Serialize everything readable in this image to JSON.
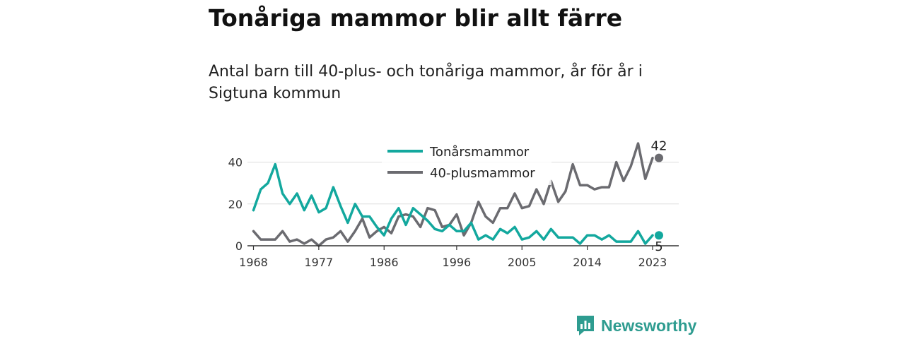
{
  "header": {
    "title": "Tonåriga mammor blir allt färre",
    "subtitle": "Antal barn till 40-plus- och tonåriga mammor, år för år i Sigtuna kommun"
  },
  "brand": {
    "name": "Newsworthy",
    "icon": "newsworthy-logo-icon",
    "color": "#2e9c90"
  },
  "chart_data": {
    "type": "line",
    "x_start": 1968,
    "x": [
      1968,
      1969,
      1970,
      1971,
      1972,
      1973,
      1974,
      1975,
      1976,
      1977,
      1978,
      1979,
      1980,
      1981,
      1982,
      1983,
      1984,
      1985,
      1986,
      1987,
      1988,
      1989,
      1990,
      1991,
      1992,
      1993,
      1994,
      1995,
      1996,
      1997,
      1998,
      1999,
      2000,
      2001,
      2002,
      2003,
      2004,
      2005,
      2006,
      2007,
      2008,
      2009,
      2010,
      2011,
      2012,
      2013,
      2014,
      2015,
      2016,
      2017,
      2018,
      2019,
      2020,
      2021,
      2022,
      2023
    ],
    "series": [
      {
        "name": "Tonårsmammor",
        "color": "#13a89e",
        "values": [
          17,
          27,
          30,
          39,
          25,
          20,
          25,
          17,
          24,
          16,
          18,
          28,
          19,
          11,
          20,
          14,
          14,
          9,
          5,
          13,
          18,
          10,
          18,
          15,
          12,
          8,
          7,
          10,
          7,
          7,
          11,
          3,
          5,
          3,
          8,
          6,
          9,
          3,
          4,
          7,
          3,
          8,
          4,
          4,
          4,
          1,
          5,
          5,
          3,
          5,
          2,
          2,
          2,
          7,
          1,
          5
        ],
        "end_label": "5"
      },
      {
        "name": "40-plusmammor",
        "color": "#6b6b70",
        "values": [
          7,
          3,
          3,
          3,
          7,
          2,
          3,
          1,
          3,
          0,
          3,
          4,
          7,
          2,
          7,
          13,
          4,
          7,
          9,
          6,
          14,
          15,
          14,
          9,
          18,
          17,
          9,
          10,
          15,
          5,
          11,
          21,
          14,
          11,
          18,
          18,
          25,
          18,
          19,
          27,
          20,
          31,
          21,
          26,
          39,
          29,
          29,
          27,
          28,
          28,
          40,
          31,
          38,
          49,
          32,
          42
        ],
        "end_label": "42"
      }
    ],
    "x_ticks": [
      {
        "value": 1968,
        "label": "1968"
      },
      {
        "value": 1977,
        "label": "1977"
      },
      {
        "value": 1986,
        "label": "1986"
      },
      {
        "value": 1996,
        "label": "1996"
      },
      {
        "value": 2005,
        "label": "2005"
      },
      {
        "value": 2014,
        "label": "2014"
      },
      {
        "value": 2023,
        "label": "2023"
      }
    ],
    "y_ticks": [
      {
        "value": 0,
        "label": "0"
      },
      {
        "value": 20,
        "label": "20"
      },
      {
        "value": 40,
        "label": "40"
      }
    ],
    "ylim": [
      0,
      50
    ],
    "grid": true,
    "legend_position": "top-center"
  }
}
